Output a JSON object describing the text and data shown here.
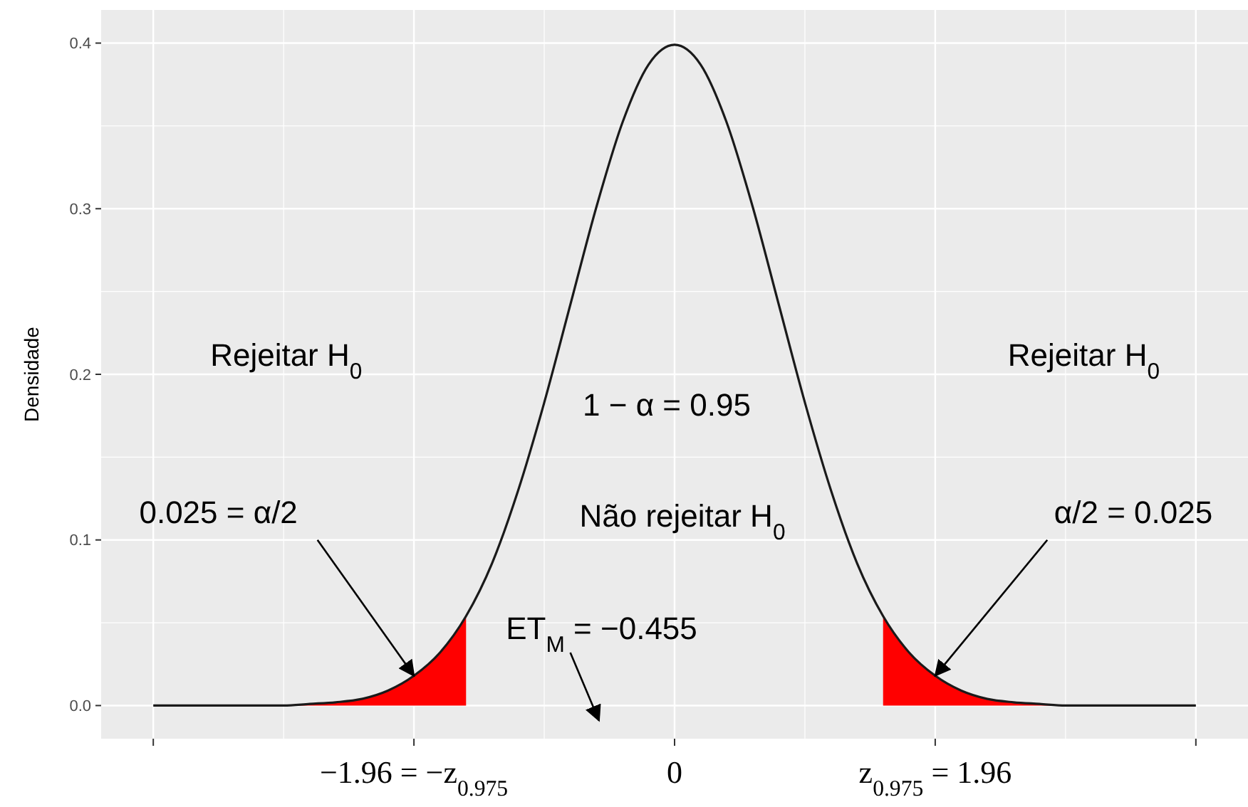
{
  "chart_data": {
    "type": "line",
    "ylabel": "Densidade",
    "categories": [
      null,
      null,
      null,
      null,
      null,
      null,
      null,
      null,
      null,
      null,
      "−1.96 = −z$_{0.975}$",
      null,
      null,
      null,
      null,
      null,
      null,
      null,
      null,
      null,
      "0",
      null,
      null,
      null,
      null,
      null,
      null,
      null,
      null,
      null,
      "z$_{0.975}$ = 1.96",
      null,
      null,
      null,
      null,
      null,
      null,
      null,
      null,
      null,
      null
    ],
    "ylim": [
      -0.02,
      0.42
    ],
    "yticks": [
      {
        "value": 0,
        "label": "0.0"
      },
      {
        "value": 0.1,
        "label": "0.1"
      },
      {
        "value": 0.2,
        "label": "0.2"
      },
      {
        "value": 0.3,
        "label": "0.3"
      },
      {
        "value": 0.4,
        "label": "0.4"
      }
    ],
    "grid": true,
    "series": [
      {
        "type": "area",
        "color": "#ff0000",
        "values": [
          0,
          0,
          0,
          0,
          0,
          0,
          0.001,
          0.002,
          0.004,
          0.009,
          0.018,
          0.032,
          0.054,
          null,
          null,
          null,
          null,
          null,
          null,
          null,
          null,
          null,
          null,
          null,
          null,
          null,
          null,
          null,
          null,
          null,
          null,
          null,
          null,
          null,
          null,
          null,
          null,
          null,
          null,
          null,
          null
        ]
      },
      {
        "type": "area",
        "color": "#ff0000",
        "values": [
          null,
          null,
          null,
          null,
          null,
          null,
          null,
          null,
          null,
          null,
          null,
          null,
          null,
          null,
          null,
          null,
          null,
          null,
          null,
          null,
          null,
          null,
          null,
          null,
          null,
          null,
          null,
          null,
          0.054,
          0.032,
          0.018,
          0.009,
          0.004,
          0.002,
          0.001,
          0,
          0,
          0,
          0,
          0,
          0
        ]
      },
      {
        "color": "#1a1a1a",
        "values": [
          0,
          0,
          0,
          0,
          0,
          0,
          0.001,
          0.002,
          0.004,
          0.009,
          0.018,
          0.032,
          0.054,
          0.086,
          0.13,
          0.183,
          0.242,
          0.301,
          0.352,
          0.387,
          0.399,
          0.387,
          0.352,
          0.301,
          0.242,
          0.183,
          0.13,
          0.086,
          0.054,
          0.032,
          0.018,
          0.009,
          0.004,
          0.002,
          0.001,
          0,
          0,
          0,
          0,
          0,
          0
        ]
      }
    ],
    "annotations": [
      "Rejeitar H$_{0}$",
      "Rejeitar H$_{0}$",
      "1 − α = 0.95",
      "Não rejeitar H$_{0}$",
      {
        "text": "0.025 = α/2",
        "x": "−1.96 = −z$_{0.975}$",
        "y": 0.018
      },
      {
        "text": "α/2 = 0.025",
        "x": "z$_{0.975}$ = 1.96",
        "y": 0.018
      },
      "ET$_{M}$ = −0.455"
    ]
  }
}
